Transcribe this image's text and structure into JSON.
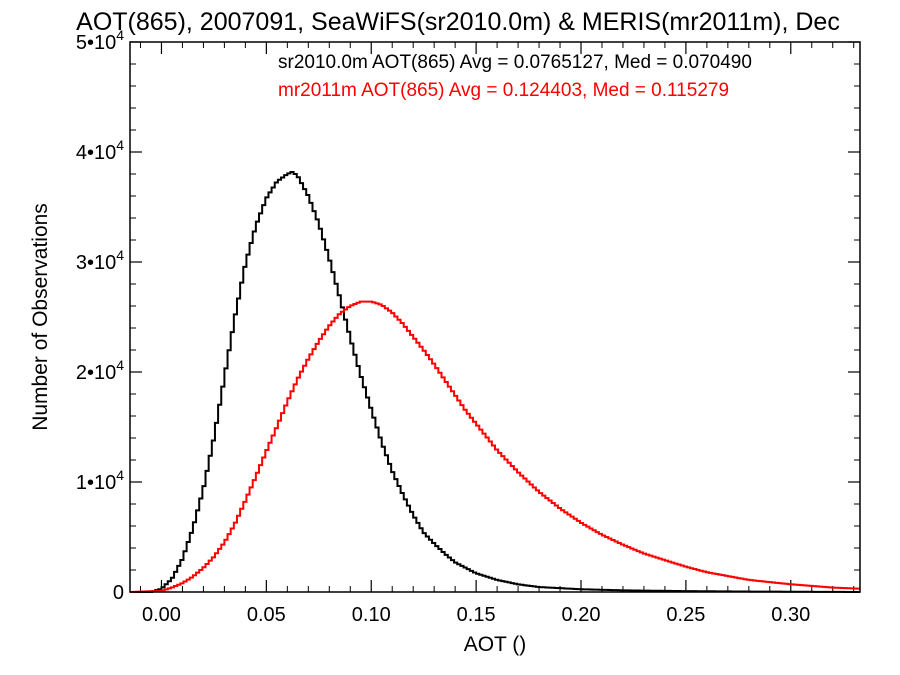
{
  "chart_data": {
    "type": "line",
    "title": "AOT(865), 2007091, SeaWiFS(sr2010.0m) & MERIS(mr2011m), Dec",
    "xlabel": "AOT ()",
    "ylabel": "Number of Observations",
    "xlim": [
      -0.015,
      0.333
    ],
    "ylim": [
      0,
      50000
    ],
    "x_ticks": [
      {
        "value": 0.0,
        "label": "0.00"
      },
      {
        "value": 0.05,
        "label": "0.05"
      },
      {
        "value": 0.1,
        "label": "0.10"
      },
      {
        "value": 0.15,
        "label": "0.15"
      },
      {
        "value": 0.2,
        "label": "0.20"
      },
      {
        "value": 0.25,
        "label": "0.25"
      },
      {
        "value": 0.3,
        "label": "0.30"
      }
    ],
    "y_ticks": [
      {
        "value": 0,
        "mantissa": "0",
        "exp": ""
      },
      {
        "value": 10000,
        "mantissa": "1•10",
        "exp": "4"
      },
      {
        "value": 20000,
        "mantissa": "2•10",
        "exp": "4"
      },
      {
        "value": 30000,
        "mantissa": "3•10",
        "exp": "4"
      },
      {
        "value": 40000,
        "mantissa": "4•10",
        "exp": "4"
      },
      {
        "value": 50000,
        "mantissa": "5•10",
        "exp": "4"
      }
    ],
    "step": "histogram",
    "series": [
      {
        "name": "sr2010.0m",
        "color": "#000000",
        "legend_text": "sr2010.0m AOT(865) Avg = 0.0765127, Med = 0.070490",
        "x": [
          -0.015,
          -0.005,
          0.0,
          0.005,
          0.01,
          0.015,
          0.02,
          0.025,
          0.03,
          0.035,
          0.04,
          0.045,
          0.05,
          0.055,
          0.06,
          0.0625,
          0.065,
          0.07,
          0.075,
          0.08,
          0.085,
          0.09,
          0.095,
          0.1,
          0.105,
          0.11,
          0.115,
          0.12,
          0.125,
          0.13,
          0.135,
          0.14,
          0.15,
          0.16,
          0.17,
          0.18,
          0.2,
          0.22,
          0.25,
          0.28,
          0.333
        ],
        "y": [
          0,
          0,
          300,
          1200,
          3000,
          5800,
          9400,
          14000,
          19500,
          25000,
          29800,
          33300,
          35800,
          37300,
          38000,
          38200,
          37800,
          36000,
          33500,
          30300,
          26800,
          23100,
          19700,
          16600,
          13600,
          11000,
          8900,
          7000,
          5400,
          4400,
          3500,
          2700,
          1700,
          1100,
          700,
          450,
          250,
          150,
          80,
          40,
          0
        ]
      },
      {
        "name": "mr2011m",
        "color": "#ff0000",
        "legend_text": "mr2011m AOT(865) Avg = 0.124403, Med = 0.115279",
        "x": [
          -0.015,
          0.0,
          0.005,
          0.01,
          0.015,
          0.02,
          0.025,
          0.03,
          0.035,
          0.04,
          0.045,
          0.05,
          0.055,
          0.06,
          0.065,
          0.07,
          0.075,
          0.08,
          0.085,
          0.09,
          0.095,
          0.1,
          0.105,
          0.11,
          0.115,
          0.12,
          0.125,
          0.13,
          0.135,
          0.14,
          0.145,
          0.15,
          0.16,
          0.17,
          0.18,
          0.19,
          0.2,
          0.21,
          0.22,
          0.23,
          0.24,
          0.25,
          0.26,
          0.28,
          0.3,
          0.32,
          0.333
        ],
        "y": [
          0,
          100,
          400,
          800,
          1400,
          2200,
          3200,
          4500,
          6200,
          8300,
          10500,
          12800,
          15000,
          17300,
          19400,
          21200,
          22800,
          24200,
          25300,
          26000,
          26400,
          26400,
          26100,
          25400,
          24400,
          23200,
          22000,
          20700,
          19300,
          17900,
          16500,
          15300,
          12900,
          10900,
          9100,
          7600,
          6300,
          5200,
          4300,
          3500,
          2900,
          2300,
          1800,
          1100,
          700,
          400,
          300
        ]
      }
    ]
  }
}
